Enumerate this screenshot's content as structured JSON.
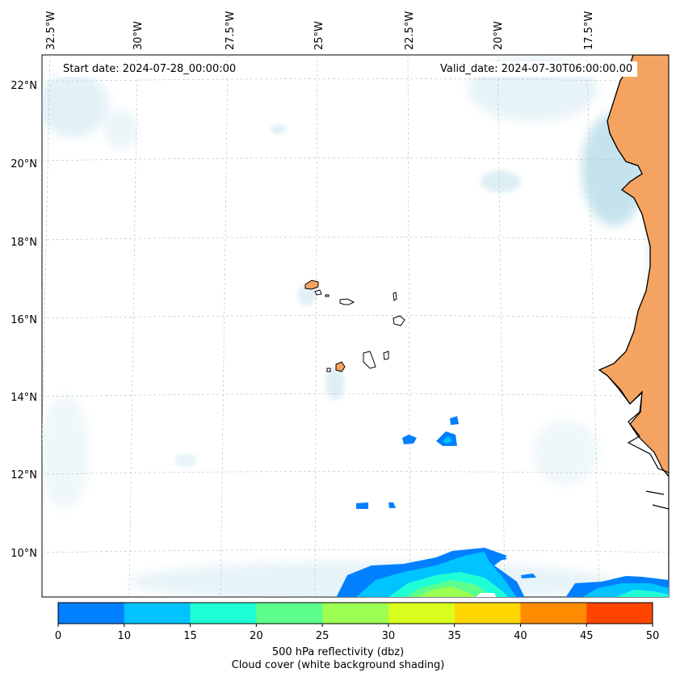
{
  "header": {
    "start_date": "Start date: 2024-07-28_00:00:00",
    "valid_date": "Valid_date: 2024-07-30T06:00:00.00"
  },
  "lon_labels": [
    "32.5°W",
    "30°W",
    "27.5°W",
    "25°W",
    "22.5°W",
    "20°W",
    "17.5°W"
  ],
  "lat_labels": [
    "22°N",
    "20°N",
    "18°N",
    "16°N",
    "14°N",
    "12°N",
    "10°N"
  ],
  "colorbar": {
    "ticks": [
      "0",
      "10",
      "15",
      "20",
      "25",
      "30",
      "35",
      "40",
      "45",
      "50"
    ],
    "colors": [
      "#0080ff",
      "#00c4ff",
      "#1effd6",
      "#5cff8c",
      "#9cff52",
      "#d8ff1e",
      "#ffd700",
      "#ff8c00",
      "#ff4500"
    ],
    "label_line1": "500 hPa reflectivity (dbz)",
    "label_line2": "Cloud cover (white background shading)"
  },
  "colors": {
    "land": "#f4a460",
    "cloud": "#add8e6",
    "coast": "#000000"
  }
}
